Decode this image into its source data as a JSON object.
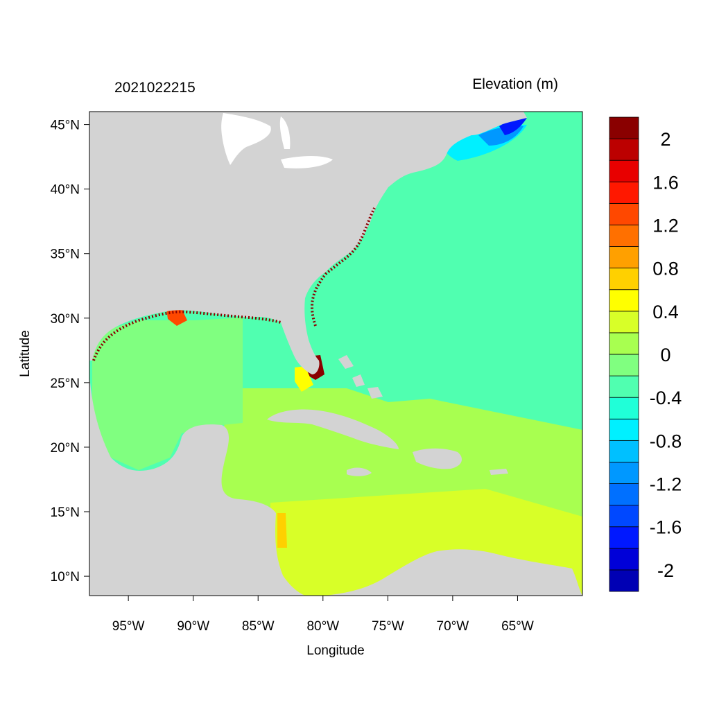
{
  "chart_data": {
    "type": "heatmap",
    "title_left": "2021022215",
    "title_right": "Elevation (m)",
    "xlabel": "Longitude",
    "ylabel": "Latitude",
    "xlim": [
      -98,
      -60
    ],
    "ylim": [
      8.5,
      46
    ],
    "x_ticks": [
      {
        "value": -95,
        "label": "95°W"
      },
      {
        "value": -90,
        "label": "90°W"
      },
      {
        "value": -85,
        "label": "85°W"
      },
      {
        "value": -80,
        "label": "80°W"
      },
      {
        "value": -75,
        "label": "75°W"
      },
      {
        "value": -70,
        "label": "70°W"
      },
      {
        "value": -65,
        "label": "65°W"
      }
    ],
    "y_ticks": [
      {
        "value": 45,
        "label": "45°N"
      },
      {
        "value": 40,
        "label": "40°N"
      },
      {
        "value": 35,
        "label": "35°N"
      },
      {
        "value": 30,
        "label": "30°N"
      },
      {
        "value": 25,
        "label": "25°N"
      },
      {
        "value": 20,
        "label": "20°N"
      },
      {
        "value": 15,
        "label": "15°N"
      },
      {
        "value": 10,
        "label": "10°N"
      }
    ],
    "colorbar": {
      "levels": [
        -2.2,
        -2.0,
        -1.8,
        -1.6,
        -1.4,
        -1.2,
        -1.0,
        -0.8,
        -0.6,
        -0.4,
        -0.2,
        0.0,
        0.2,
        0.4,
        0.6,
        0.8,
        1.0,
        1.2,
        1.4,
        1.6,
        1.8,
        2.0,
        2.2
      ],
      "colors": [
        "#0000b4",
        "#0000d8",
        "#0018ff",
        "#0048ff",
        "#0070ff",
        "#0098ff",
        "#00c0ff",
        "#00f0ff",
        "#20ffd8",
        "#50ffb0",
        "#80ff80",
        "#a8ff50",
        "#d8ff28",
        "#ffff00",
        "#ffd000",
        "#ffa000",
        "#ff7000",
        "#ff4800",
        "#ff1800",
        "#e80000",
        "#bc0000",
        "#8a0000"
      ],
      "labels": [
        {
          "value": 2.0,
          "text": "2"
        },
        {
          "value": 1.6,
          "text": "1.6"
        },
        {
          "value": 1.2,
          "text": "1.2"
        },
        {
          "value": 0.8,
          "text": "0.8"
        },
        {
          "value": 0.4,
          "text": "0.4"
        },
        {
          "value": 0.0,
          "text": "0"
        },
        {
          "value": -0.4,
          "text": "-0.4"
        },
        {
          "value": -0.8,
          "text": "-0.8"
        },
        {
          "value": -1.2,
          "text": "-1.2"
        },
        {
          "value": -1.6,
          "text": "-1.6"
        },
        {
          "value": -2.0,
          "text": "-2"
        }
      ]
    },
    "land_color": "#d3d3d3",
    "field_regions": [
      {
        "name": "atlantic-open-ocean",
        "value": -0.3
      },
      {
        "name": "gulf-of-mexico",
        "value": -0.1
      },
      {
        "name": "caribbean-sea",
        "value": 0.1
      },
      {
        "name": "southern-caribbean",
        "value": 0.3
      },
      {
        "name": "gulf-of-maine",
        "value": -1.0
      },
      {
        "name": "bay-of-fundy",
        "value": -1.8
      },
      {
        "name": "south-florida-coast",
        "value": 2.2
      }
    ]
  }
}
